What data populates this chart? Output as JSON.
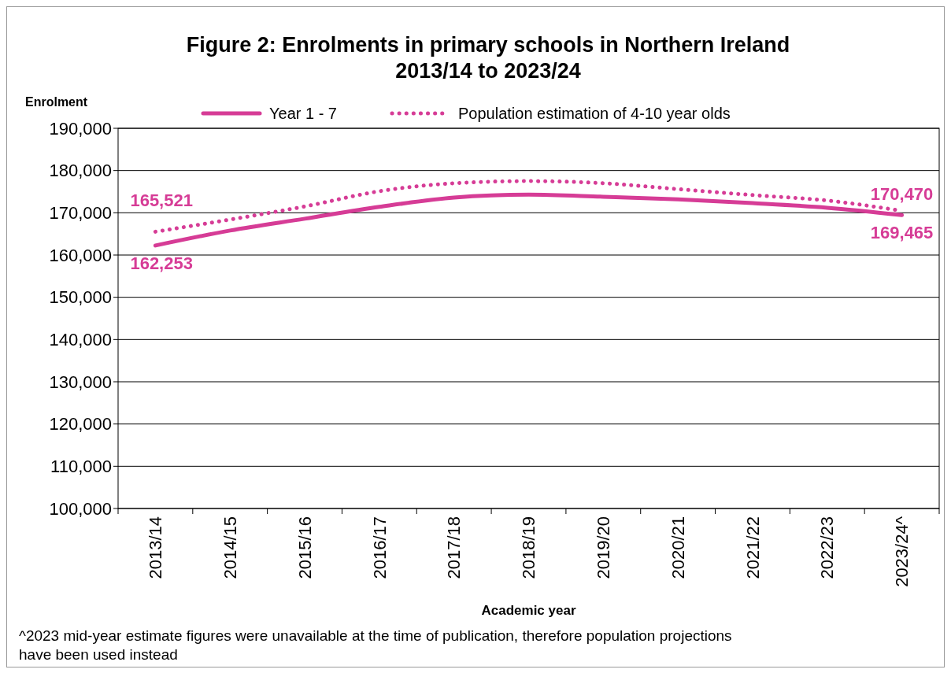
{
  "chart_data": {
    "type": "line",
    "title": "Figure 2: Enrolments in primary schools in Northern Ireland\n2013/14 to 2023/24",
    "ylabel": "Enrolment",
    "xlabel": "Academic year",
    "categories": [
      "2013/14",
      "2014/15",
      "2015/16",
      "2016/17",
      "2017/18",
      "2018/19",
      "2019/20",
      "2020/21",
      "2021/22",
      "2022/23",
      "2023/24^"
    ],
    "series": [
      {
        "name": "Year 1 - 7",
        "color": "#d63c96",
        "line_style": "solid",
        "values": [
          162253,
          165800,
          168600,
          171400,
          173600,
          174300,
          173800,
          173200,
          172300,
          171200,
          169465
        ],
        "value_labels": [
          "162,253",
          null,
          null,
          null,
          null,
          null,
          null,
          null,
          null,
          null,
          "169,465"
        ]
      },
      {
        "name": "Population estimation of 4-10 year olds",
        "color": "#d63c96",
        "line_style": "dotted",
        "values": [
          165521,
          168400,
          171500,
          175100,
          177000,
          177500,
          177000,
          175600,
          174200,
          172900,
          170470
        ],
        "value_labels": [
          "165,521",
          null,
          null,
          null,
          null,
          null,
          null,
          null,
          null,
          null,
          "170,470"
        ]
      }
    ],
    "ylim": [
      100000,
      190000
    ],
    "yticks": [
      {
        "value": 100000,
        "label": "100,000"
      },
      {
        "value": 110000,
        "label": "110,000"
      },
      {
        "value": 120000,
        "label": "120,000"
      },
      {
        "value": 130000,
        "label": "130,000"
      },
      {
        "value": 140000,
        "label": "140,000"
      },
      {
        "value": 150000,
        "label": "150,000"
      },
      {
        "value": 160000,
        "label": "160,000"
      },
      {
        "value": 170000,
        "label": "170,000"
      },
      {
        "value": 180000,
        "label": "180,000"
      },
      {
        "value": 190000,
        "label": "190,000"
      }
    ],
    "grid": "y",
    "legend": "top",
    "marker": "none",
    "annotations": [
      "^2023 mid-year estimate figures were unavailable at the time of publication, therefore population projections have been used instead"
    ]
  }
}
